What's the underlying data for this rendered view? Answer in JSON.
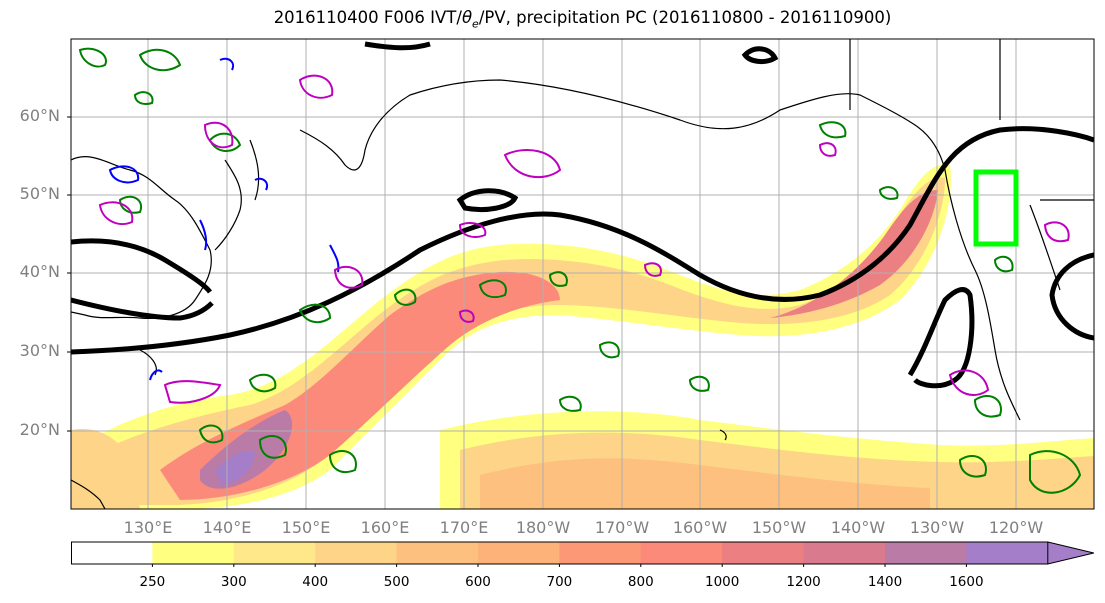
{
  "title": "2016110400 F006 IVT/θe/PV, precipitation PC (2016110800 - 2016110900)",
  "title_parts": {
    "prefix": "2016110400 F006 IVT/",
    "theta": "θ",
    "sub": "e",
    "suffix": "/PV, precipitation PC (2016110800 - 2016110900)"
  },
  "lat_labels": [
    "60°N",
    "50°N",
    "40°N",
    "30°N",
    "20°N"
  ],
  "lon_labels": [
    "130°E",
    "140°E",
    "150°E",
    "160°E",
    "170°E",
    "180°W",
    "170°W",
    "160°W",
    "150°W",
    "140°W",
    "130°W",
    "120°W"
  ],
  "colorbar": {
    "levels": [
      "250",
      "300",
      "400",
      "500",
      "600",
      "700",
      "800",
      "1000",
      "1200",
      "1400",
      "1600"
    ],
    "colors": [
      "#ffffff",
      "#ffff80",
      "#fee88a",
      "#fdd488",
      "#fdc07f",
      "#fdb27a",
      "#fd9877",
      "#fb8a7b",
      "#eb7f82",
      "#d97a8e",
      "#bb7ba7",
      "#a47ec8"
    ]
  },
  "overlay_colors": {
    "theta_e_contour": "#000000",
    "pv_green": "#008000",
    "pv_blue": "#0000ff",
    "pv_magenta": "#bf00bf",
    "target_box": "#00ff00",
    "coastline": "#000000"
  }
}
